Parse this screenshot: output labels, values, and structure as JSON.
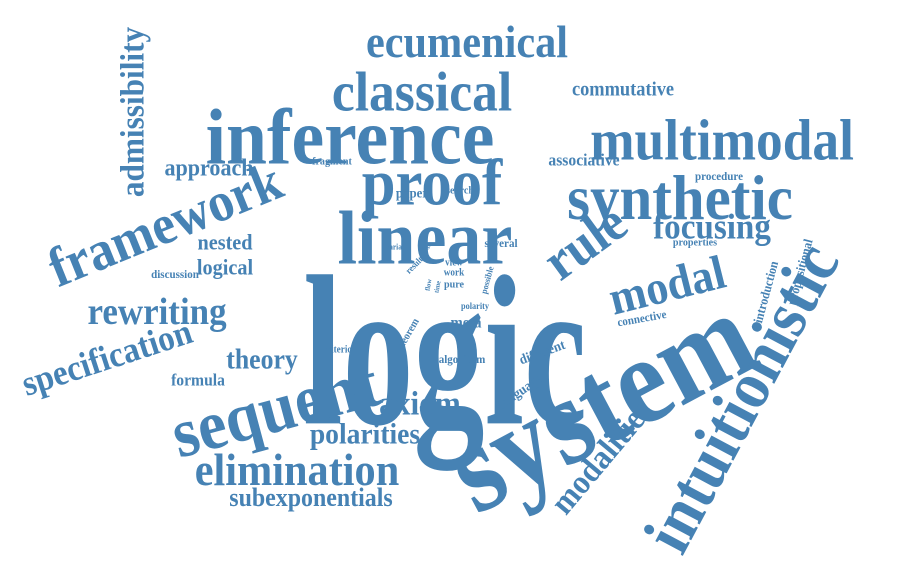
{
  "colors": {
    "word": "#4682b4",
    "background": "#ffffff"
  },
  "words": [
    {
      "text": "logic",
      "weight": 1.0
    },
    {
      "text": "system",
      "weight": 0.8
    },
    {
      "text": "linear",
      "weight": 0.55
    },
    {
      "text": "inference",
      "weight": 0.55
    },
    {
      "text": "intuitionistic",
      "weight": 0.55
    },
    {
      "text": "sequent",
      "weight": 0.5
    },
    {
      "text": "proof",
      "weight": 0.5
    },
    {
      "text": "synthetic",
      "weight": 0.5
    },
    {
      "text": "multimodal",
      "weight": 0.48
    },
    {
      "text": "classical",
      "weight": 0.45
    },
    {
      "text": "framework",
      "weight": 0.45
    },
    {
      "text": "ecumenical",
      "weight": 0.4
    },
    {
      "text": "rule",
      "weight": 0.4
    },
    {
      "text": "elimination",
      "weight": 0.38
    },
    {
      "text": "modal",
      "weight": 0.35
    },
    {
      "text": "rewriting",
      "weight": 0.33
    },
    {
      "text": "specification",
      "weight": 0.32
    },
    {
      "text": "modalities",
      "weight": 0.32
    },
    {
      "text": "focusing",
      "weight": 0.3
    },
    {
      "text": "admissibility",
      "weight": 0.3
    },
    {
      "text": "axiom",
      "weight": 0.3
    },
    {
      "text": "polarities",
      "weight": 0.28
    },
    {
      "text": "subexponentials",
      "weight": 0.26
    },
    {
      "text": "theory",
      "weight": 0.26
    },
    {
      "text": "approach",
      "weight": 0.24
    },
    {
      "text": "nested",
      "weight": 0.22
    },
    {
      "text": "logical",
      "weight": 0.22
    },
    {
      "text": "commutative",
      "weight": 0.2
    },
    {
      "text": "associative",
      "weight": 0.18
    },
    {
      "text": "formula",
      "weight": 0.18
    },
    {
      "text": "meta",
      "weight": 0.17
    },
    {
      "text": "different",
      "weight": 0.15
    },
    {
      "text": "language",
      "weight": 0.15
    },
    {
      "text": "propositional",
      "weight": 0.14
    },
    {
      "text": "introduction",
      "weight": 0.14
    },
    {
      "text": "connective",
      "weight": 0.13
    },
    {
      "text": "paper",
      "weight": 0.13
    },
    {
      "text": "procedure",
      "weight": 0.12
    },
    {
      "text": "properties",
      "weight": 0.12
    },
    {
      "text": "several",
      "weight": 0.12
    },
    {
      "text": "algorithm",
      "weight": 0.12
    },
    {
      "text": "discussion",
      "weight": 0.12
    },
    {
      "text": "theorem",
      "weight": 0.11
    },
    {
      "text": "search",
      "weight": 0.1
    },
    {
      "text": "fragment",
      "weight": 0.1
    },
    {
      "text": "criterion",
      "weight": 0.1
    },
    {
      "text": "view",
      "weight": 0.1
    },
    {
      "text": "work",
      "weight": 0.1
    },
    {
      "text": "pure",
      "weight": 0.1
    },
    {
      "text": "polarity",
      "weight": 0.09
    },
    {
      "text": "possible",
      "weight": 0.09
    },
    {
      "text": "result",
      "weight": 0.09
    },
    {
      "text": "variant",
      "weight": 0.08
    },
    {
      "text": "e.g.",
      "weight": 0.08
    },
    {
      "text": "flow",
      "weight": 0.08
    },
    {
      "text": "time",
      "weight": 0.08
    }
  ]
}
